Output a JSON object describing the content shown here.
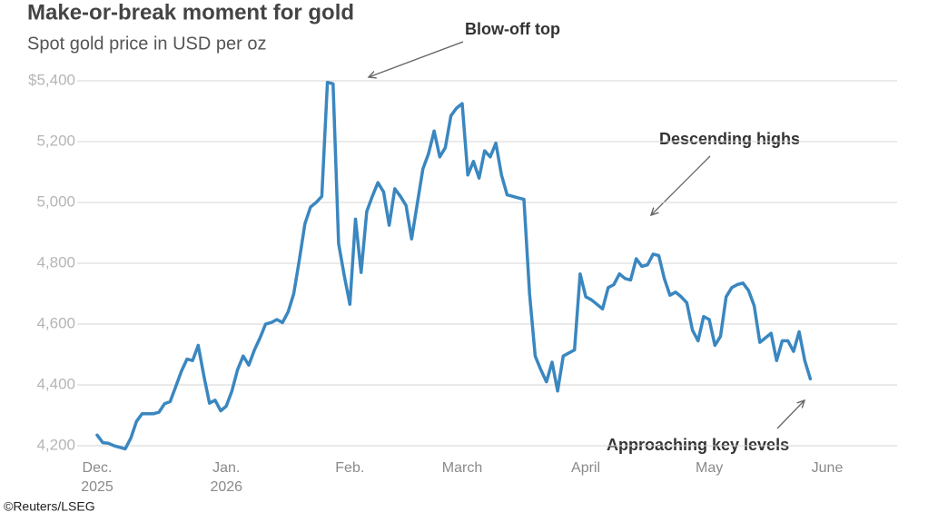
{
  "chart_data": {
    "type": "line",
    "title": "Make-or-break moment for gold",
    "subtitle": "Spot gold price in USD per oz",
    "source": "©Reuters/LSEG",
    "annotations": [
      "Blow-off top",
      "Descending highs",
      "Approaching key levels"
    ],
    "color": "#3a87c0",
    "grid": true,
    "ylim": [
      4200,
      5400
    ],
    "yticks": [
      {
        "value": 4200,
        "label": "4,200"
      },
      {
        "value": 4400,
        "label": "4,400"
      },
      {
        "value": 4600,
        "label": "4,600"
      },
      {
        "value": 4800,
        "label": "4,800"
      },
      {
        "value": 5000,
        "label": "5,000"
      },
      {
        "value": 5200,
        "label": "5,200"
      },
      {
        "value": 5400,
        "label": "$5,400"
      }
    ],
    "categories": [
      "Dec.\n2025",
      null,
      null,
      null,
      null,
      null,
      null,
      null,
      null,
      null,
      null,
      null,
      null,
      null,
      null,
      null,
      null,
      null,
      null,
      null,
      null,
      null,
      null,
      "Jan.\n2026",
      null,
      null,
      null,
      null,
      null,
      null,
      null,
      null,
      null,
      null,
      null,
      null,
      null,
      null,
      null,
      null,
      null,
      null,
      null,
      null,
      null,
      "Feb.",
      null,
      null,
      null,
      null,
      null,
      null,
      null,
      null,
      null,
      null,
      null,
      null,
      null,
      null,
      null,
      null,
      null,
      null,
      null,
      "March",
      null,
      null,
      null,
      null,
      null,
      null,
      null,
      null,
      null,
      null,
      null,
      null,
      null,
      null,
      null,
      null,
      null,
      null,
      null,
      null,
      null,
      "April",
      null,
      null,
      null,
      null,
      null,
      null,
      null,
      null,
      null,
      null,
      null,
      null,
      null,
      null,
      null,
      null,
      null,
      null,
      null,
      null,
      null,
      "May",
      null,
      null,
      null,
      null,
      null,
      null,
      null,
      null,
      null,
      null,
      null,
      null,
      null,
      null,
      null,
      null,
      null,
      null,
      null,
      null,
      "June"
    ],
    "values": [
      4235,
      4210,
      4208,
      4200,
      4195,
      4190,
      4225,
      4280,
      4305,
      4305,
      4305,
      4310,
      4338,
      4345,
      4395,
      4445,
      4485,
      4480,
      4530,
      4430,
      4340,
      4350,
      4315,
      4330,
      4380,
      4450,
      4495,
      4465,
      4515,
      4555,
      4600,
      4605,
      4615,
      4605,
      4640,
      4700,
      4810,
      4930,
      4985,
      5000,
      5020,
      5395,
      5390,
      4865,
      4760,
      4665,
      4945,
      4770,
      4970,
      5020,
      5065,
      5035,
      4925,
      5045,
      5020,
      4990,
      4880,
      4995,
      5110,
      5160,
      5235,
      5150,
      5180,
      5285,
      5310,
      5325,
      5090,
      5135,
      5080,
      5170,
      5150,
      5195,
      5090,
      5025,
      5020,
      5015,
      5010,
      4700,
      4495,
      4450,
      4410,
      4475,
      4380,
      4495,
      4505,
      4515,
      4765,
      4690,
      4680,
      4665,
      4650,
      4720,
      4730,
      4765,
      4750,
      4745,
      4815,
      4790,
      4795,
      4830,
      4825,
      4750,
      4695,
      4705,
      4690,
      4670,
      4580,
      4545,
      4625,
      4615,
      4530,
      4560,
      4690,
      4720,
      4730,
      4735,
      4710,
      4660,
      4540,
      4555,
      4570,
      4480,
      4545,
      4545,
      4510,
      4575,
      4480,
      4420,
      null,
      null,
      null
    ]
  }
}
